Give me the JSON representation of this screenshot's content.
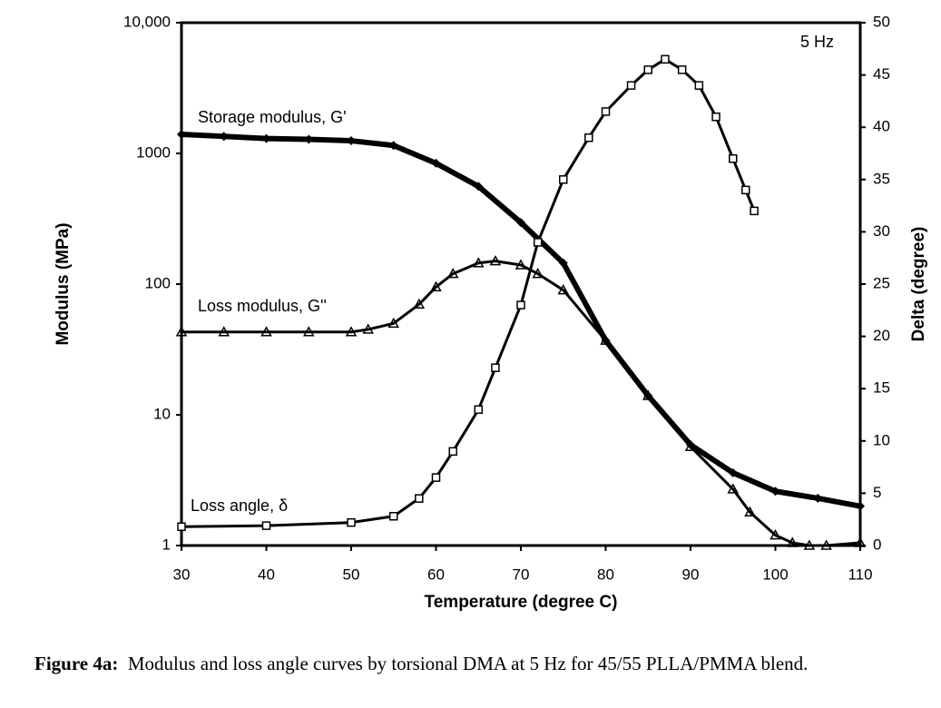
{
  "chart_data": {
    "type": "line",
    "x_label": "Temperature (degree C)",
    "y_label": "Modulus (MPa)",
    "y2_label": "Delta (degree)",
    "xlim": [
      30,
      110
    ],
    "xticks": [
      30,
      40,
      50,
      60,
      70,
      80,
      90,
      100,
      110
    ],
    "ylim": [
      1,
      10000
    ],
    "yscale": "log",
    "yticks": [
      1,
      10,
      100,
      1000,
      {
        "value": 10000,
        "label": "10,000"
      }
    ],
    "y2lim": [
      0,
      50
    ],
    "y2ticks": [
      0,
      5,
      10,
      15,
      20,
      25,
      30,
      35,
      40,
      45,
      50
    ],
    "annotations": [
      "Storage modulus, G'",
      "Loss modulus, G''",
      "Loss angle, δ",
      "5 Hz"
    ],
    "series": [
      {
        "name": "Storage modulus, G'",
        "marker": "diamond",
        "color": "#000000",
        "x": [
          30,
          35,
          40,
          45,
          50,
          55,
          60,
          65,
          70,
          75,
          80,
          85,
          90,
          95,
          100,
          105,
          110
        ],
        "values": [
          1400,
          1350,
          1300,
          1280,
          1250,
          1150,
          840,
          560,
          296,
          145,
          37,
          14,
          5.9,
          3.6,
          2.6,
          2.3,
          2.0
        ]
      },
      {
        "name": "Loss modulus, G''",
        "marker": "triangle",
        "color": "#000000",
        "x": [
          30,
          35,
          40,
          45,
          50,
          52,
          55,
          58,
          60,
          62,
          65,
          67,
          70,
          72,
          75,
          80,
          85,
          90,
          95,
          97,
          100,
          102,
          104,
          106,
          110
        ],
        "values": [
          43,
          43,
          43,
          43,
          43,
          45,
          50,
          70,
          95,
          120,
          145,
          150,
          140,
          120,
          90,
          37,
          14,
          5.7,
          2.7,
          1.8,
          1.2,
          1.05,
          1.0,
          1.0,
          1.05
        ]
      },
      {
        "name": "Loss angle, δ",
        "marker": "square",
        "color": "#000000",
        "axis": "y2",
        "x": [
          30,
          40,
          50,
          55,
          58,
          60,
          62,
          65,
          67,
          70,
          72,
          75,
          78,
          80,
          83,
          85,
          87,
          89,
          91,
          93,
          95,
          96.5,
          97.5
        ],
        "values": [
          1.8,
          1.9,
          2.2,
          2.8,
          4.5,
          6.5,
          9,
          13,
          17,
          23,
          29,
          35,
          39,
          41.5,
          44,
          45.5,
          46.5,
          45.5,
          44,
          41,
          37,
          34,
          32
        ]
      }
    ]
  },
  "caption": {
    "label": "Figure 4a:",
    "text": "Modulus and loss angle curves by torsional DMA at 5 Hz for 45/55 PLLA/PMMA blend."
  }
}
